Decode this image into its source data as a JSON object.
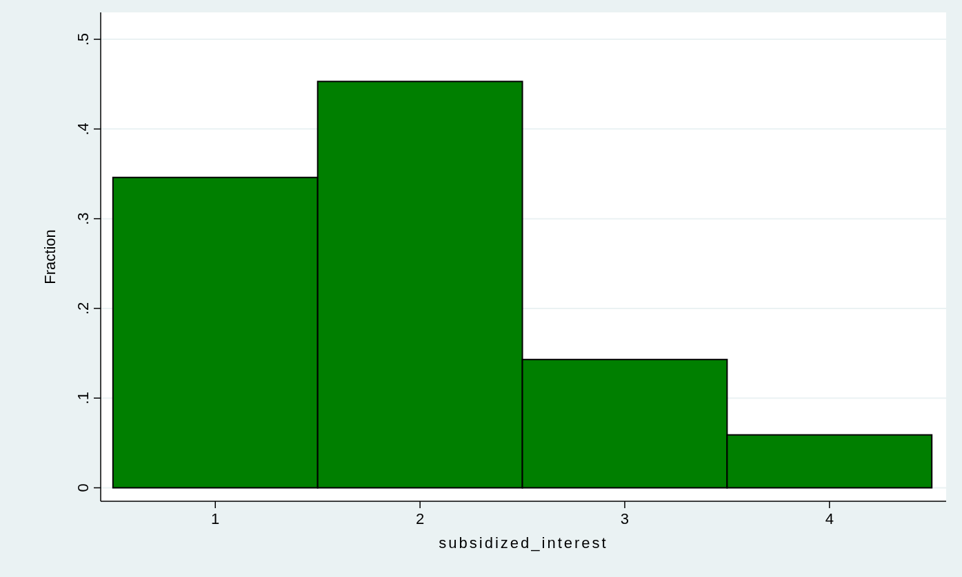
{
  "chart_data": {
    "type": "histogram",
    "xlabel": "subsidized_interest",
    "ylabel": "Fraction",
    "bins": [
      0.5,
      1.5,
      2.5,
      3.5,
      4.5
    ],
    "values": [
      0.346,
      0.453,
      0.143,
      0.059
    ],
    "color": "#007f00",
    "xlim": [
      0.44,
      4.57
    ],
    "xticks": [
      1,
      2,
      3,
      4
    ],
    "ylim": [
      -0.015,
      0.53
    ],
    "yticks": [
      {
        "value": 0,
        "label": "0"
      },
      {
        "value": 0.1,
        "label": ".1"
      },
      {
        "value": 0.2,
        "label": ".2"
      },
      {
        "value": 0.3,
        "label": ".3"
      },
      {
        "value": 0.4,
        "label": ".4"
      },
      {
        "value": 0.5,
        "label": ".5"
      }
    ],
    "grid": "y"
  }
}
